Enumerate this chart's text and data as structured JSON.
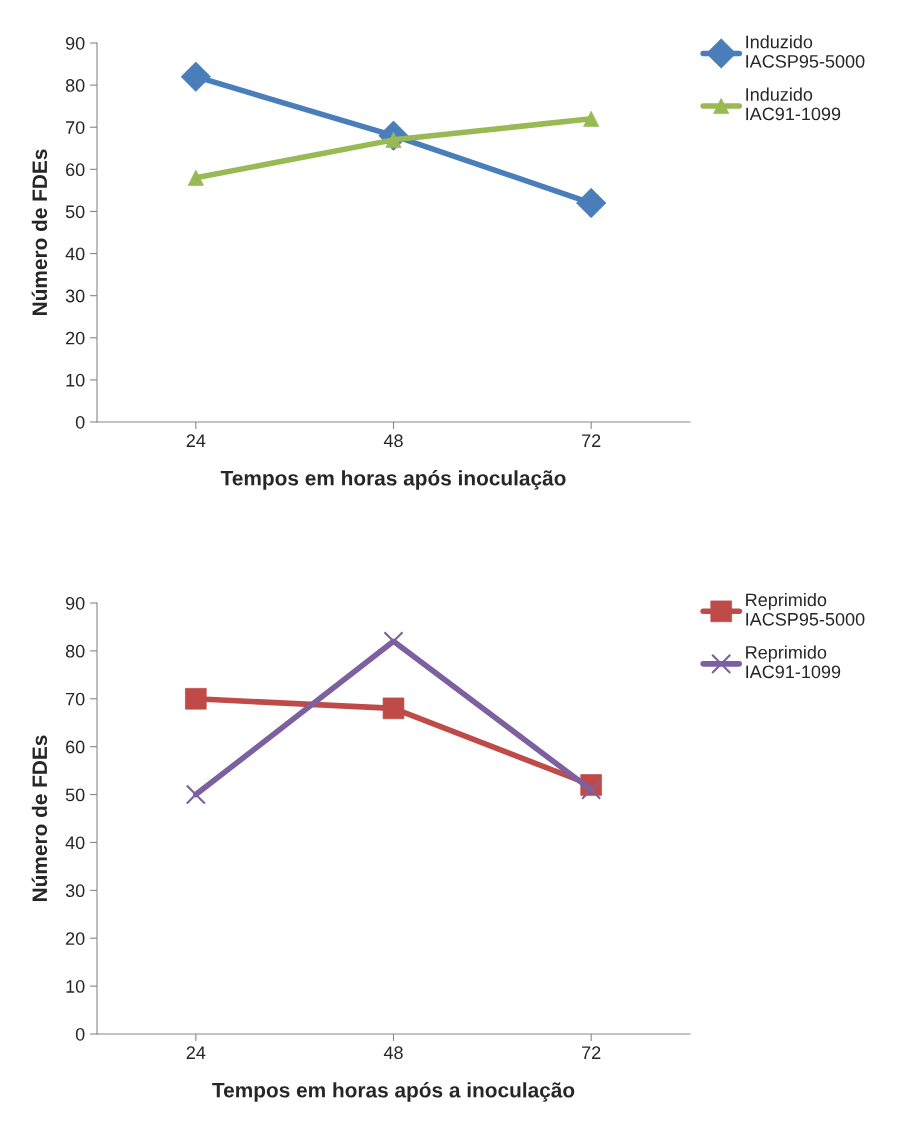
{
  "chart_data": [
    {
      "type": "line",
      "xlabel": "Tempos em horas após inoculação",
      "ylabel": "Número de FDEs",
      "categories": [
        "24",
        "48",
        "72"
      ],
      "ylim": [
        0,
        90
      ],
      "yticks": [
        0,
        10,
        20,
        30,
        40,
        50,
        60,
        70,
        80,
        90
      ],
      "grid": false,
      "legend": "top right",
      "series": [
        {
          "name": "Induzido IACSP95-5000",
          "color": "#4a7ebb",
          "marker": "diamond",
          "values": [
            82,
            68,
            52
          ]
        },
        {
          "name": "Induzido IAC91-1099",
          "color": "#98b954",
          "marker": "triangle",
          "values": [
            58,
            67,
            72
          ]
        }
      ]
    },
    {
      "type": "line",
      "xlabel": "Tempos em horas após a inoculação",
      "ylabel": "Número de FDEs",
      "categories": [
        "24",
        "48",
        "72"
      ],
      "ylim": [
        0,
        90
      ],
      "yticks": [
        0,
        10,
        20,
        30,
        40,
        50,
        60,
        70,
        80,
        90
      ],
      "grid": false,
      "legend": "top right",
      "series": [
        {
          "name": "Reprimido IACSP95-5000",
          "color": "#be4b48",
          "marker": "square",
          "values": [
            70,
            68,
            52
          ]
        },
        {
          "name": "Reprimido IAC91-1099",
          "color": "#7d60a0",
          "marker": "cross",
          "values": [
            50,
            82,
            51
          ]
        }
      ]
    }
  ]
}
